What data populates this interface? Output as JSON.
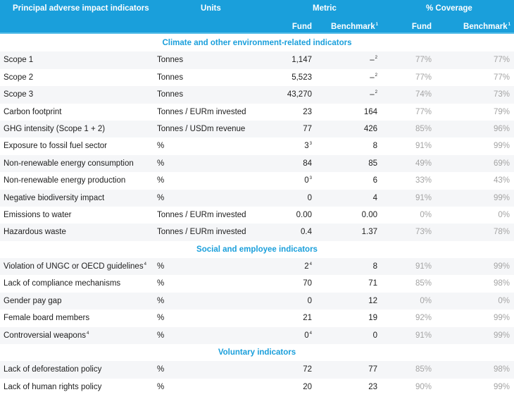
{
  "header": {
    "indicator": "Principal adverse impact indicators",
    "units": "Units",
    "metric": "Metric",
    "coverage": "% Coverage",
    "fund": "Fund",
    "benchmark": "Benchmark",
    "benchmark_sup": "1",
    "cov_fund": "Fund",
    "cov_benchmark": "Benchmark"
  },
  "sections": [
    {
      "title": "Climate and other environment-related indicators",
      "rows": [
        {
          "name": "Scope 1",
          "unit": "Tonnes",
          "fund": "1,147",
          "bench": "–",
          "bench_sup": "2",
          "cf": "77%",
          "cb": "77%"
        },
        {
          "name": "Scope 2",
          "unit": "Tonnes",
          "fund": "5,523",
          "bench": "–",
          "bench_sup": "2",
          "cf": "77%",
          "cb": "77%"
        },
        {
          "name": "Scope 3",
          "unit": "Tonnes",
          "fund": "43,270",
          "bench": "–",
          "bench_sup": "2",
          "cf": "74%",
          "cb": "73%"
        },
        {
          "name": "Carbon footprint",
          "unit": "Tonnes / EURm invested",
          "fund": "23",
          "bench": "164",
          "cf": "77%",
          "cb": "79%"
        },
        {
          "name": "GHG intensity (Scope 1 + 2)",
          "unit": "Tonnes / USDm revenue",
          "fund": "77",
          "bench": "426",
          "cf": "85%",
          "cb": "96%"
        },
        {
          "name": "Exposure to fossil fuel sector",
          "unit": "%",
          "fund": "3",
          "fund_sup": "3",
          "bench": "8",
          "cf": "91%",
          "cb": "99%"
        },
        {
          "name": "Non-renewable energy consumption",
          "unit": "%",
          "fund": "84",
          "bench": "85",
          "cf": "49%",
          "cb": "69%"
        },
        {
          "name": "Non-renewable energy production",
          "unit": "%",
          "fund": "0",
          "fund_sup": "3",
          "bench": "6",
          "cf": "33%",
          "cb": "43%"
        },
        {
          "name": "Negative biodiversity impact",
          "unit": "%",
          "fund": "0",
          "bench": "4",
          "cf": "91%",
          "cb": "99%"
        },
        {
          "name": "Emissions to water",
          "unit": "Tonnes / EURm invested",
          "fund": "0.00",
          "bench": "0.00",
          "cf": "0%",
          "cb": "0%"
        },
        {
          "name": "Hazardous waste",
          "unit": "Tonnes / EURm invested",
          "fund": "0.4",
          "bench": "1.37",
          "cf": "73%",
          "cb": "78%"
        }
      ]
    },
    {
      "title": "Social and employee indicators",
      "rows": [
        {
          "name": "Violation of UNGC or OECD guidelines",
          "name_sup": "4",
          "unit": "%",
          "fund": "2",
          "fund_sup": "4",
          "bench": "8",
          "cf": "91%",
          "cb": "99%"
        },
        {
          "name": "Lack of compliance mechanisms",
          "unit": "%",
          "fund": "70",
          "bench": "71",
          "cf": "85%",
          "cb": "98%"
        },
        {
          "name": "Gender pay gap",
          "unit": "%",
          "fund": "0",
          "bench": "12",
          "cf": "0%",
          "cb": "0%"
        },
        {
          "name": "Female board members",
          "unit": "%",
          "fund": "21",
          "bench": "19",
          "cf": "92%",
          "cb": "99%"
        },
        {
          "name": "Controversial weapons",
          "name_sup": "4",
          "unit": "%",
          "fund": "0",
          "fund_sup": "4",
          "bench": "0",
          "cf": "91%",
          "cb": "99%"
        }
      ]
    },
    {
      "title": "Voluntary indicators",
      "rows": [
        {
          "name": "Lack of deforestation policy",
          "unit": "%",
          "fund": "72",
          "bench": "77",
          "cf": "85%",
          "cb": "98%"
        },
        {
          "name": "Lack of human rights policy",
          "unit": "%",
          "fund": "20",
          "bench": "23",
          "cf": "90%",
          "cb": "99%"
        }
      ]
    }
  ]
}
